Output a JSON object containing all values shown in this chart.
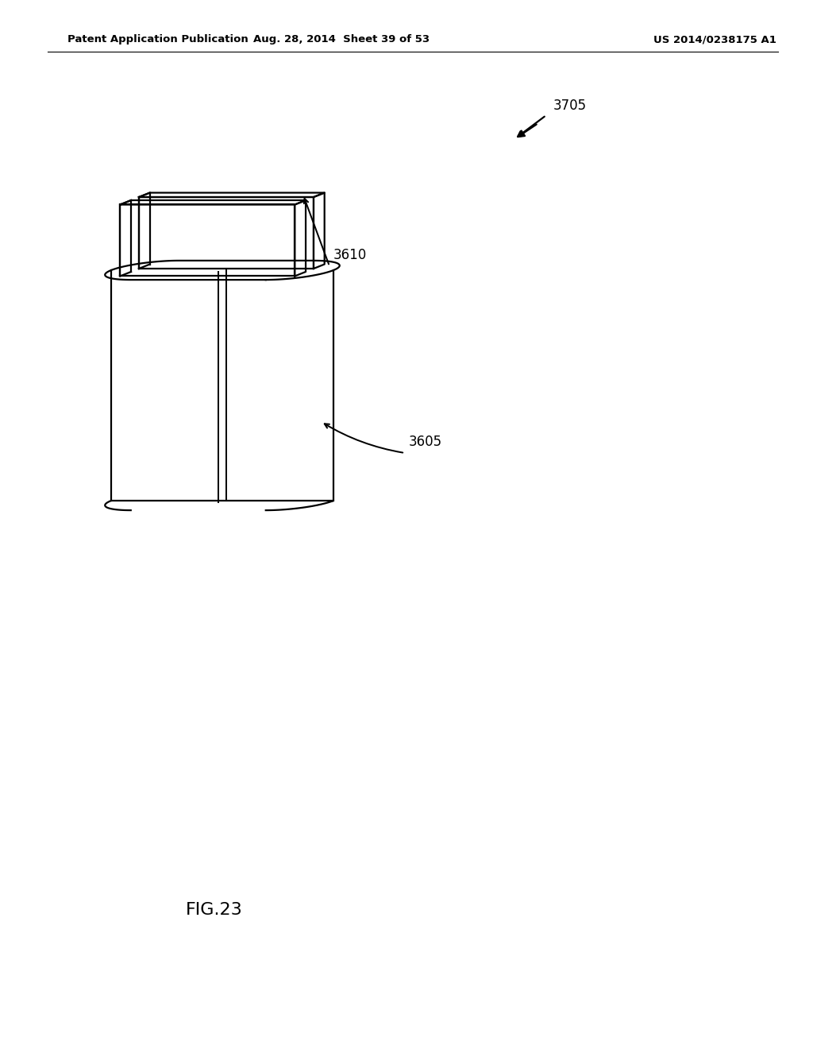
{
  "bg_color": "#ffffff",
  "line_color": "#000000",
  "line_width": 1.6,
  "header_left": "Patent Application Publication",
  "header_mid": "Aug. 28, 2014  Sheet 39 of 53",
  "header_right": "US 2014/0238175 A1",
  "fig_label": "FIG.23",
  "label_3705": "3705",
  "label_3610": "3610",
  "label_3605": "3605"
}
